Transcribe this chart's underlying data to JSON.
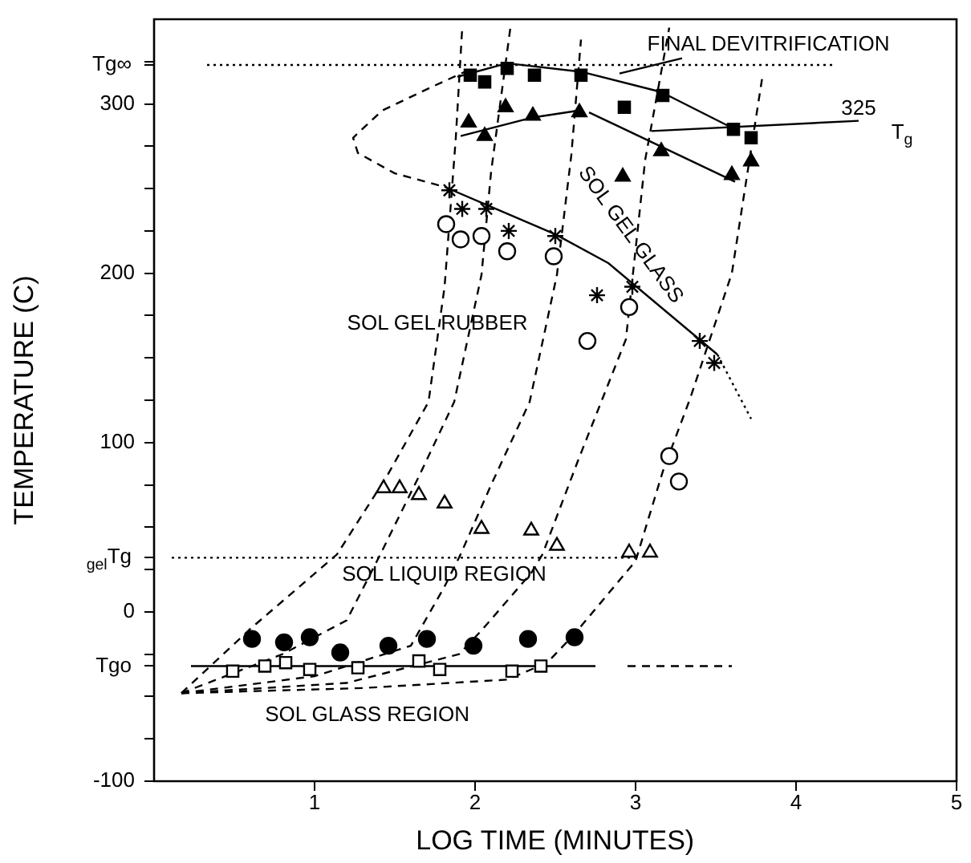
{
  "chart_data": {
    "type": "scatter",
    "xlabel": "LOG TIME (MINUTES)",
    "ylabel": "TEMPERATURE (C)",
    "xlim": [
      0,
      5
    ],
    "xticks": [
      1,
      2,
      3,
      4,
      5
    ],
    "ylim": [
      -100,
      350
    ],
    "yticks": [
      -100,
      {
        "value": -75,
        "label": null
      },
      {
        "value": -50,
        "label": null
      },
      {
        "value": -32,
        "label": "Tgo"
      },
      {
        "value": -25,
        "label": null
      },
      0,
      {
        "value": 25,
        "label": null
      },
      {
        "value": 32,
        "label": "$_{gel}$Tg"
      },
      {
        "value": 50,
        "label": null
      },
      {
        "value": 75,
        "label": null
      },
      100,
      {
        "value": 125,
        "label": null
      },
      {
        "value": 150,
        "label": null
      },
      {
        "value": 175,
        "label": null
      },
      200,
      {
        "value": 225,
        "label": null
      },
      {
        "value": 250,
        "label": null
      },
      {
        "value": 275,
        "label": null
      },
      300,
      {
        "value": 323,
        "label": "Tg∞"
      },
      {
        "value": 325,
        "label": null
      }
    ],
    "grid": false,
    "legend": false,
    "series": [
      {
        "marker": "square",
        "color": "#000000",
        "x": [
          1.97,
          2.06,
          2.2,
          2.37,
          2.66,
          2.93,
          3.17,
          3.61,
          3.72
        ],
        "values": [
          317,
          313,
          321,
          317,
          317,
          298,
          305,
          285,
          280
        ]
      },
      {
        "marker": "triangle",
        "color": "#000000",
        "x": [
          1.96,
          2.06,
          2.19,
          2.36,
          2.65,
          2.92,
          3.16,
          3.6,
          3.72
        ],
        "values": [
          289,
          281,
          298,
          293,
          295,
          257,
          272,
          258,
          266
        ]
      },
      {
        "marker": "cross",
        "color": "#000000",
        "x": [
          1.84,
          1.92,
          2.07,
          2.21,
          2.5,
          2.76,
          2.98,
          3.4,
          3.49
        ],
        "values": [
          249,
          238,
          238,
          225,
          222,
          187,
          192,
          160,
          147
        ]
      },
      {
        "marker": "circle",
        "color": "#ffffff",
        "x": [
          1.82,
          1.91,
          2.04,
          2.2,
          2.49,
          2.7,
          2.96,
          3.21,
          3.27
        ],
        "values": [
          229,
          220,
          222,
          213,
          210,
          160,
          180,
          92,
          77
        ]
      },
      {
        "marker": "triangle",
        "color": "#ffffff",
        "x": [
          1.43,
          1.53,
          1.65,
          1.81,
          2.04,
          2.35,
          2.51,
          2.96,
          3.09
        ],
        "values": [
          73,
          73,
          69,
          64,
          49,
          48,
          39,
          35,
          35
        ]
      },
      {
        "marker": "circle",
        "color": "#000000",
        "x": [
          0.61,
          0.81,
          0.97,
          1.16,
          1.46,
          1.7,
          1.99,
          2.33,
          2.62
        ],
        "values": [
          -16,
          -18,
          -15,
          -24,
          -20,
          -16,
          -20,
          -16,
          -15
        ]
      },
      {
        "marker": "square",
        "color": "#ffffff",
        "x": [
          0.49,
          0.69,
          0.82,
          0.97,
          1.27,
          1.65,
          1.78,
          2.23,
          2.41
        ],
        "values": [
          -35,
          -32,
          -30,
          -34,
          -33,
          -29,
          -34,
          -35,
          -32
        ]
      },
      {
        "type": "line",
        "line_style": "solid",
        "color": "#000000",
        "x": [
          1.89,
          2.2,
          2.66,
          3.16,
          3.62
        ],
        "values": [
          316,
          324,
          319,
          307,
          285
        ]
      },
      {
        "type": "line",
        "line_style": "solid",
        "color": "#000000",
        "x": [
          1.91,
          2.36,
          2.64,
          2.68,
          2.71,
          3.62
        ],
        "values": [
          281,
          292,
          296,
          null,
          295,
          254
        ]
      },
      {
        "type": "line",
        "line_style": "solid",
        "color": "#000000",
        "x": [
          1.81,
          2.5,
          2.83,
          3.51
        ],
        "values": [
          251,
          223,
          206,
          152
        ]
      },
      {
        "type": "line",
        "line_style": "dotted",
        "color": "#000000",
        "x": [
          3.51,
          3.72
        ],
        "values": [
          152,
          114
        ]
      },
      {
        "type": "line",
        "line_style": "dashed",
        "color": "#000000",
        "x": [
          1.96,
          1.73,
          1.42,
          1.24,
          1.27,
          1.5,
          1.81
        ],
        "values": [
          320,
          310,
          296,
          280,
          271,
          259,
          251
        ]
      },
      {
        "type": "line",
        "line_style": "dashed",
        "color": "#000000",
        "x": [
          0.17,
          0.6,
          1.14,
          1.45,
          1.71,
          1.81,
          1.88,
          1.92
        ],
        "values": [
          -48,
          -10,
          34,
          80,
          124,
          192,
          280,
          345
        ]
      },
      {
        "type": "line",
        "line_style": "dashed",
        "color": "#000000",
        "x": [
          0.17,
          0.8,
          1.2,
          1.41,
          1.65,
          1.87,
          2.04,
          2.1,
          2.22
        ],
        "values": [
          -48,
          -25,
          -5,
          34,
          80,
          124,
          199,
          260,
          345
        ]
      },
      {
        "type": "line",
        "line_style": "dashed",
        "color": "#000000",
        "x": [
          0.17,
          1.0,
          1.6,
          1.81,
          1.91,
          2.1,
          2.34,
          2.51,
          2.6,
          2.66
        ],
        "values": [
          -48,
          -38,
          -20,
          15,
          34,
          75,
          124,
          199,
          270,
          338
        ]
      },
      {
        "type": "line",
        "line_style": "dashed",
        "color": "#000000",
        "x": [
          0.17,
          1.2,
          1.9,
          2.04,
          2.35,
          2.42,
          2.64,
          2.94,
          3.06,
          3.21
        ],
        "values": [
          -48,
          -42,
          -25,
          -11,
          23,
          34,
          89,
          161,
          267,
          345
        ]
      },
      {
        "type": "line",
        "line_style": "dashed",
        "color": "#000000",
        "x": [
          0.17,
          1.3,
          2.2,
          2.45,
          2.62,
          3.0,
          3.17,
          3.34,
          3.6,
          3.79
        ],
        "values": [
          -48,
          -45,
          -40,
          -30,
          -13,
          30,
          83,
          126,
          200,
          316
        ]
      },
      {
        "type": "line",
        "line_style": "dotted",
        "color": "#000000",
        "x": [
          0.33,
          4.25
        ],
        "values": [
          323,
          323
        ]
      },
      {
        "type": "line",
        "line_style": "dotted",
        "color": "#000000",
        "x": [
          0.11,
          3.0
        ],
        "values": [
          32,
          32
        ]
      },
      {
        "type": "line",
        "line_style": "solid",
        "color": "#000000",
        "x": [
          0.23,
          2.75
        ],
        "values": [
          -32,
          -32
        ]
      },
      {
        "type": "line",
        "line_style": "dashed",
        "color": "#000000",
        "x": [
          2.95,
          3.6
        ],
        "values": [
          -32,
          -32
        ]
      },
      {
        "type": "line",
        "line_style": "solid",
        "color": "#000000",
        "x": [
          3.29,
          2.9
        ],
        "values": [
          327,
          318
        ]
      },
      {
        "type": "line",
        "line_style": "solid",
        "color": "#000000",
        "x": [
          4.39,
          3.1
        ],
        "values": [
          290,
          284
        ]
      }
    ],
    "annotations": [
      "FINAL DEVITRIFICATION",
      "325",
      "T$_{g}$",
      "SOL GEL GLASS",
      "SOL GEL RUBBER",
      "SOL LIQUID REGION",
      "SOL GLASS REGION"
    ]
  }
}
